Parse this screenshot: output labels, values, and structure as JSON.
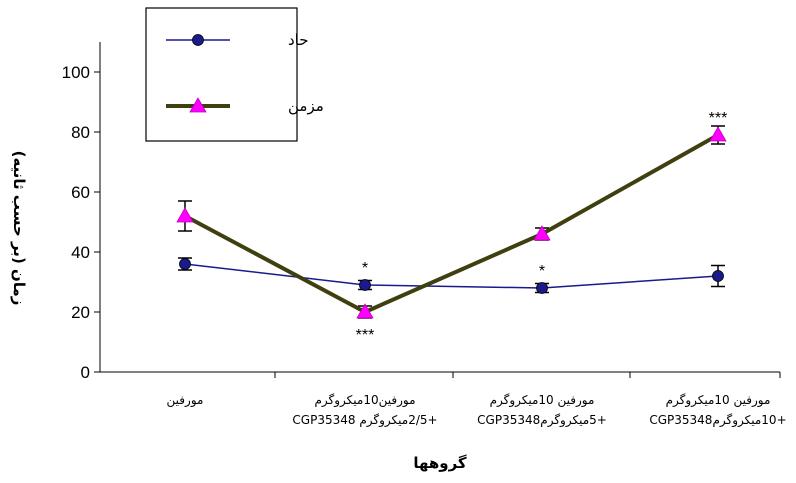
{
  "chart_data": {
    "type": "line",
    "categories": [
      [
        "مورفين"
      ],
      [
        "مورفين10ميکروگرم",
        "+2/5ميکروگرم CGP35348"
      ],
      [
        "مورفين 10ميکروگرم",
        "+5ميکروگرمCGP35348"
      ],
      [
        "مورفين 10ميکروگرم",
        "+10ميکروگرمCGP35348"
      ]
    ],
    "series": [
      {
        "name": "حاد",
        "color": "#1a1a8c",
        "marker": "circle",
        "marker_color": "#1a1a8c",
        "values": [
          36,
          29,
          28,
          32
        ],
        "errors": [
          2,
          1.5,
          1.5,
          3.5
        ]
      },
      {
        "name": "مزمن",
        "color": "#3f3f10",
        "marker": "triangle",
        "marker_color": "#ff00ff",
        "values": [
          52,
          20,
          46,
          79
        ],
        "errors": [
          5,
          2,
          2,
          3
        ]
      }
    ],
    "annotations": [
      {
        "category": 1,
        "y": 29,
        "text": "*",
        "position": "above"
      },
      {
        "category": 1,
        "y": 20,
        "text": "***",
        "position": "below"
      },
      {
        "category": 2,
        "y": 28,
        "text": "*",
        "position": "above"
      },
      {
        "category": 3,
        "y": 79,
        "text": "***",
        "position": "above"
      }
    ],
    "xlabel": "گروهها",
    "ylabel": "زمان  (بر حسب ثانيه)",
    "ylim": [
      0,
      100
    ],
    "yticks": [
      0,
      20,
      40,
      60,
      80,
      100
    ],
    "grid": false,
    "legend": "top-left"
  }
}
